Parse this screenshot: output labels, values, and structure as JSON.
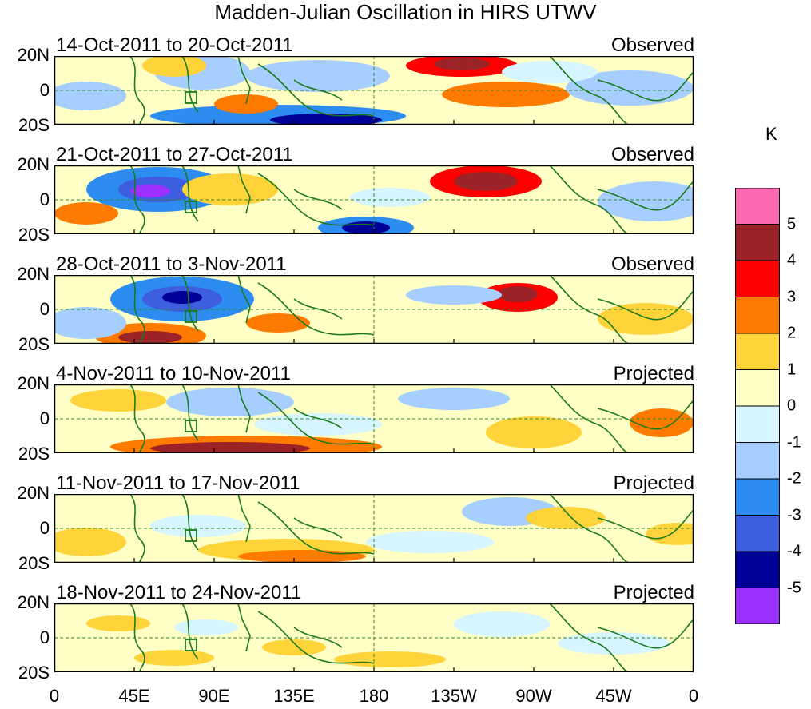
{
  "title": "Madden-Julian Oscillation in HIRS UTWV",
  "unit": "K",
  "y_labels": [
    "20N",
    "0",
    "20S"
  ],
  "x_labels": [
    "0",
    "45E",
    "90E",
    "135E",
    "180",
    "135W",
    "90W",
    "45W",
    "0"
  ],
  "panels": [
    {
      "period": "14-Oct-2011 to 20-Oct-2011",
      "status": "Observed"
    },
    {
      "period": "21-Oct-2011 to 27-Oct-2011",
      "status": "Observed"
    },
    {
      "period": "28-Oct-2011 to 3-Nov-2011",
      "status": "Observed"
    },
    {
      "period": "4-Nov-2011 to 10-Nov-2011",
      "status": "Projected"
    },
    {
      "period": "11-Nov-2011 to 17-Nov-2011",
      "status": "Projected"
    },
    {
      "period": "18-Nov-2011 to 24-Nov-2011",
      "status": "Projected"
    }
  ],
  "colorbar": {
    "labels": [
      "5",
      "4",
      "3",
      "2",
      "1",
      "0",
      "-1",
      "-2",
      "-3",
      "-4",
      "-5"
    ],
    "colors": [
      "#ff69b4",
      "#9b2226",
      "#ff0000",
      "#ff7b00",
      "#ffd33a",
      "#ffffc6",
      "#d6f5ff",
      "#a6ceff",
      "#2c8cf0",
      "#3e5ee0",
      "#000098",
      "#9b30ff"
    ]
  }
}
